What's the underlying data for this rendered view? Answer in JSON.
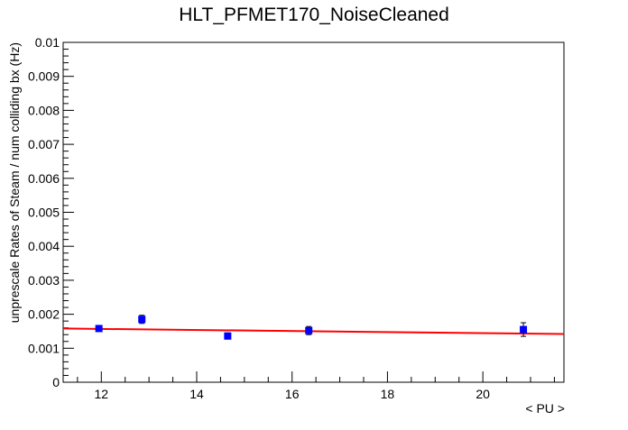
{
  "chart_data": {
    "type": "scatter",
    "title": "HLT_PFMET170_NoiseCleaned",
    "xlabel": "< PU >",
    "ylabel": "unprescale Rates of Steam / num colliding bx (Hz)",
    "xlim": [
      11.2,
      21.7
    ],
    "ylim": [
      0,
      0.01
    ],
    "x_ticks": [
      12,
      14,
      16,
      18,
      20
    ],
    "x_tick_labels": [
      "12",
      "14",
      "16",
      "18",
      "20"
    ],
    "y_ticks": [
      0,
      0.001,
      0.002,
      0.003,
      0.004,
      0.005,
      0.006,
      0.007,
      0.008,
      0.009,
      0.01
    ],
    "y_tick_labels": [
      "0",
      "0.001",
      "0.002",
      "0.003",
      "0.004",
      "0.005",
      "0.006",
      "0.007",
      "0.008",
      "0.009",
      "0.01"
    ],
    "grid": false,
    "series": [
      {
        "points": [
          {
            "x": 11.95,
            "y": 0.00158,
            "err": 7e-05
          },
          {
            "x": 12.85,
            "y": 0.00185,
            "err": 0.00012
          },
          {
            "x": 14.65,
            "y": 0.00136,
            "err": 9e-05
          },
          {
            "x": 16.35,
            "y": 0.00152,
            "err": 0.00012
          },
          {
            "x": 20.85,
            "y": 0.00155,
            "err": 0.0002
          }
        ],
        "color": "#0000ff"
      }
    ],
    "fit": {
      "type": "line",
      "color": "#ff0000",
      "x": [
        11.2,
        21.7
      ],
      "y": [
        0.00158,
        0.00142
      ]
    }
  }
}
